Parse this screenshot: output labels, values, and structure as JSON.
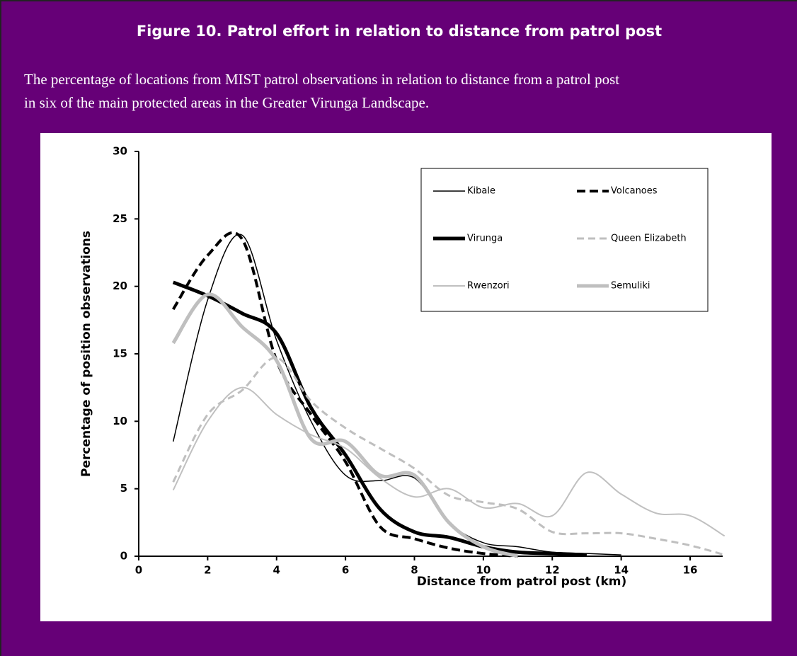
{
  "header": {
    "title": "Figure 10. Patrol effort in relation to distance from patrol post",
    "caption": [
      "The percentage of locations from MIST patrol observations in relation to distance from a patrol post",
      "in six of the main protected areas in the Greater Virunga Landscape."
    ]
  },
  "chart_data": {
    "type": "line",
    "x": [
      1,
      2,
      3,
      4,
      5,
      6,
      7,
      8,
      9,
      10,
      11,
      12,
      13,
      14,
      15,
      16,
      17
    ],
    "xlabel": "Distance from patrol post (km)",
    "ylabel": "Percentage of position observations",
    "xlim": [
      0,
      17
    ],
    "xticks": [
      0,
      2,
      4,
      6,
      8,
      10,
      12,
      14,
      16
    ],
    "ylim": [
      0,
      30
    ],
    "yticks": [
      0,
      5,
      10,
      15,
      20,
      25,
      30
    ],
    "series": [
      {
        "name": "Kibale",
        "color": "#000000",
        "line_style": "solid-thin",
        "values": [
          8.5,
          19,
          23.8,
          16,
          10,
          6,
          5.6,
          5.8,
          2.5,
          1,
          0.7,
          0.3,
          0.2,
          0.1,
          null,
          null,
          null
        ]
      },
      {
        "name": "Volcanoes",
        "color": "#000000",
        "line_style": "dashed-thick",
        "values": [
          18.3,
          22.3,
          23.5,
          14.5,
          10.5,
          7,
          2.2,
          1.3,
          0.6,
          0.2,
          0,
          null,
          null,
          null,
          null,
          null,
          null
        ]
      },
      {
        "name": "Virunga",
        "color": "#000000",
        "line_style": "solid-thick",
        "values": [
          20.3,
          19.3,
          18,
          16.5,
          11,
          7.5,
          3.5,
          1.8,
          1.4,
          0.7,
          0.3,
          0.2,
          0.1,
          null,
          null,
          null,
          null
        ]
      },
      {
        "name": "Queen Elizabeth",
        "color": "#bfbfbf",
        "line_style": "dashed",
        "values": [
          5.5,
          10.5,
          12.3,
          14.7,
          11.5,
          9.5,
          8,
          6.5,
          4.5,
          4,
          3.5,
          1.8,
          1.7,
          1.7,
          1.3,
          0.8,
          0.1
        ]
      },
      {
        "name": "Rwenzori",
        "color": "#c0c0c0",
        "line_style": "solid",
        "values": [
          4.9,
          10,
          12.5,
          10.5,
          9,
          8,
          5.8,
          4.4,
          5,
          3.6,
          3.9,
          3,
          6.2,
          4.6,
          3.2,
          3,
          1.5
        ]
      },
      {
        "name": "Semuliki",
        "color": "#bfbfbf",
        "line_style": "solid-thick",
        "values": [
          15.8,
          19.4,
          17,
          14.5,
          8.7,
          8.5,
          6,
          6,
          2.5,
          0.7,
          0,
          null,
          null,
          null,
          null,
          null,
          null
        ]
      }
    ]
  }
}
